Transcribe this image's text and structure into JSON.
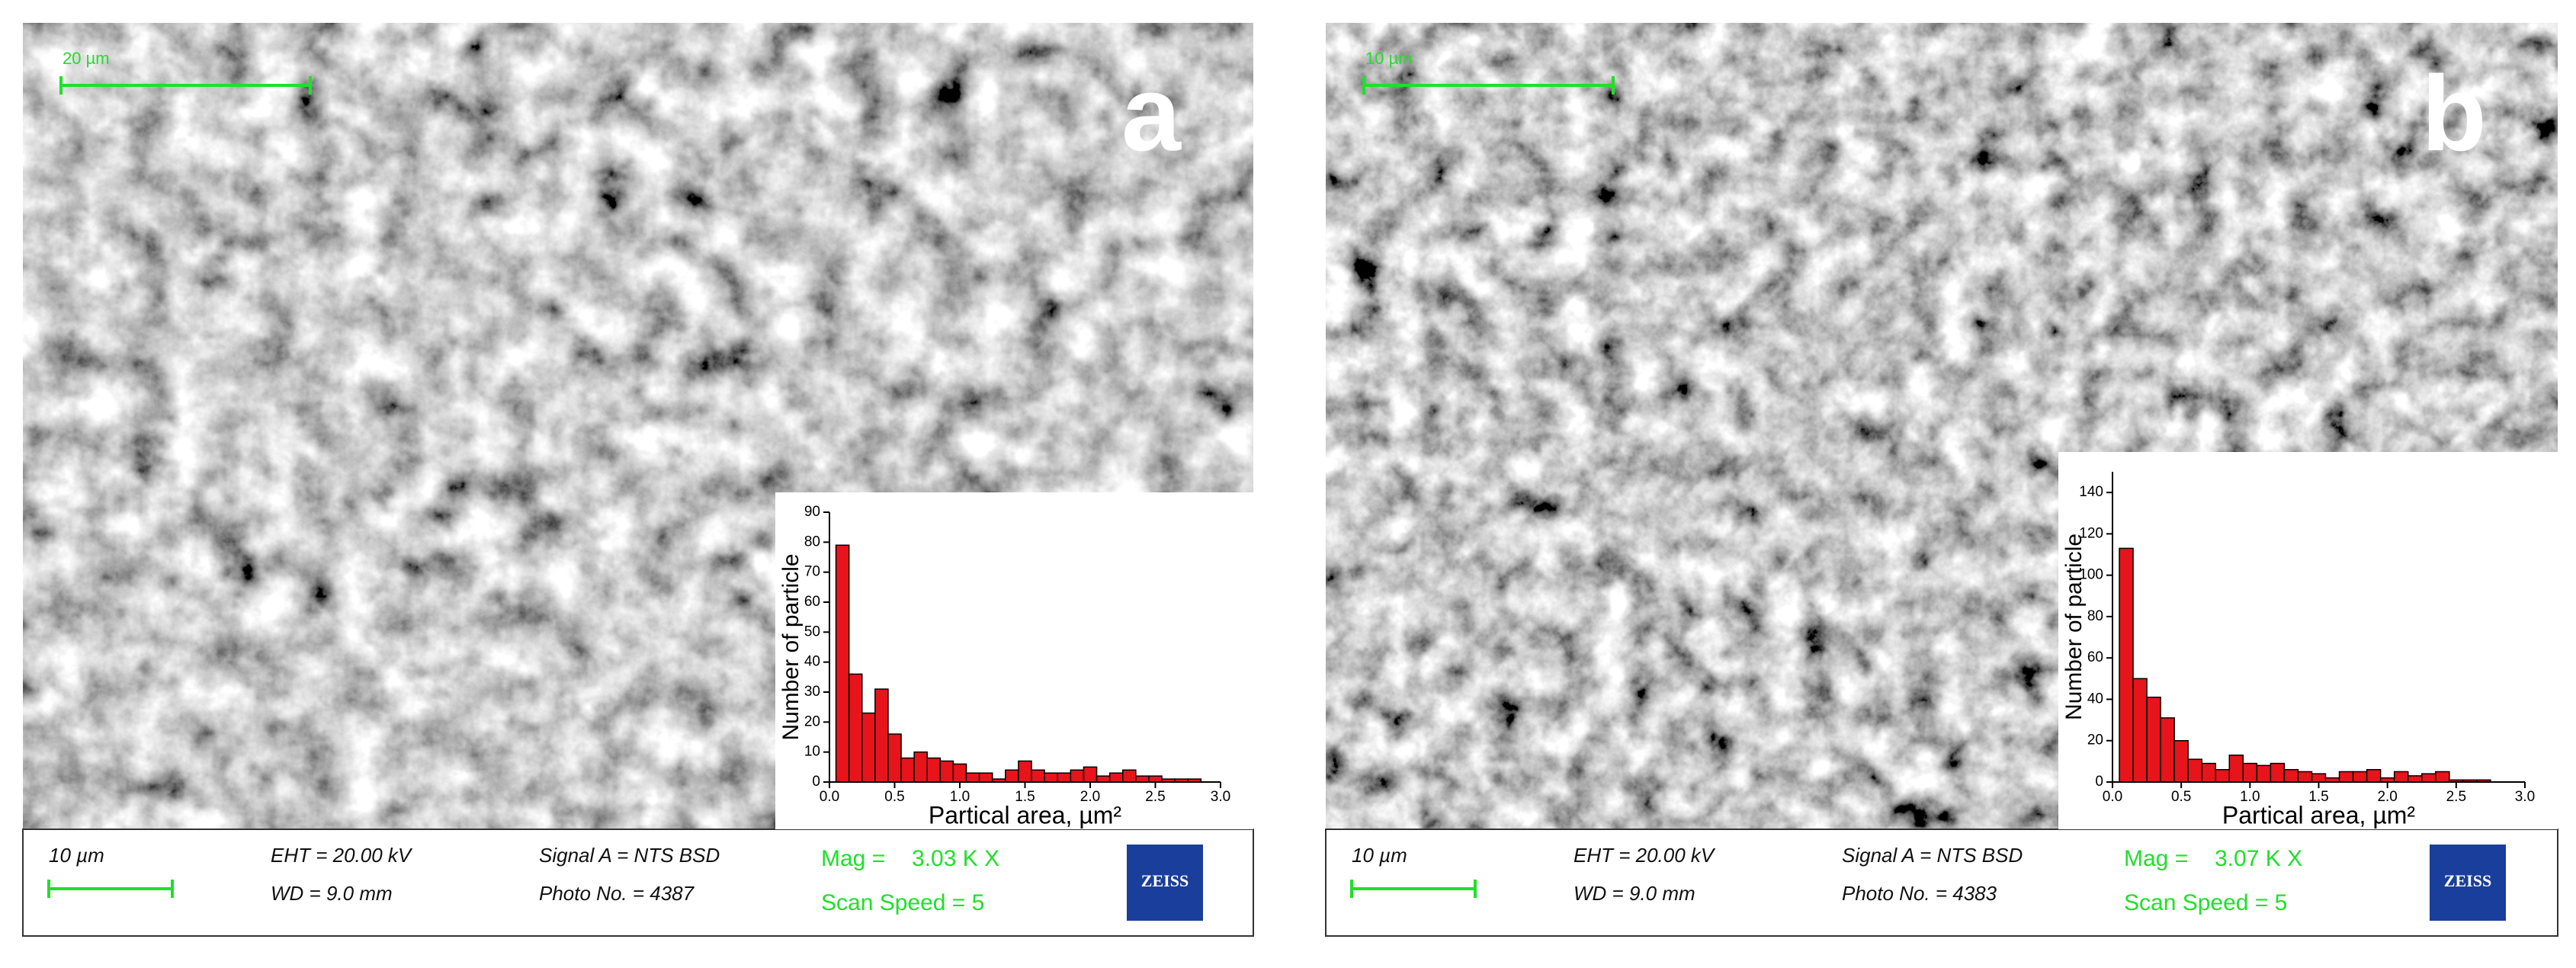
{
  "panels": [
    {
      "letter": "a",
      "scale_top": "20 µm",
      "info": {
        "scale": "10 µm",
        "eht": "EHT = 20.00 kV",
        "wd": "WD =  9.0 mm",
        "signal": "Signal A = NTS BSD",
        "photo": "Photo No. = 4387",
        "mag_label": "Mag =",
        "mag_value": "3.03 K X",
        "scan": "Scan Speed = 5",
        "logo": "ZEISS"
      }
    },
    {
      "letter": "b",
      "scale_top": "10 µm",
      "info": {
        "scale": "10 µm",
        "eht": "EHT = 20.00 kV",
        "wd": "WD =  9.0 mm",
        "signal": "Signal A = NTS BSD",
        "photo": "Photo No. = 4383",
        "mag_label": "Mag =",
        "mag_value": "3.07 K X",
        "scan": "Scan Speed = 5",
        "logo": "ZEISS"
      }
    }
  ],
  "chart_data": [
    {
      "type": "histogram",
      "x_label": "Partical area, µm²",
      "y_label": "Number of particle",
      "color": "#e8141b",
      "bins": [
        0.05,
        0.15,
        0.25,
        0.35,
        0.45,
        0.55,
        0.65,
        0.75,
        0.85,
        0.95,
        1.05,
        1.15,
        1.25,
        1.35,
        1.45,
        1.55,
        1.65,
        1.75,
        1.85,
        1.95,
        2.05,
        2.15,
        2.25,
        2.35,
        2.45,
        2.55,
        2.65,
        2.75,
        2.85
      ],
      "values": [
        79,
        36,
        23,
        31,
        16,
        8,
        10,
        8,
        7,
        6,
        3,
        3,
        1,
        4,
        7,
        4,
        3,
        3,
        4,
        5,
        2,
        3,
        4,
        2,
        2,
        1,
        1,
        1
      ],
      "xlim": [
        0,
        3
      ],
      "xticks": [
        {
          "value": 0,
          "label": "0.0"
        },
        0.5,
        {
          "value": 1,
          "label": "1.0"
        },
        1.5,
        {
          "value": 2,
          "label": "2.0"
        },
        2.5,
        {
          "value": 3,
          "label": "3.0"
        }
      ],
      "ylim": [
        0,
        90
      ],
      "yticks": [
        0,
        10,
        20,
        30,
        40,
        50,
        60,
        70,
        80,
        90
      ]
    },
    {
      "type": "histogram",
      "x_label": "Partical area, µm²",
      "y_label": "Number of particle",
      "color": "#e8141b",
      "bins": [
        0.05,
        0.15,
        0.25,
        0.35,
        0.45,
        0.55,
        0.65,
        0.75,
        0.85,
        0.95,
        1.05,
        1.15,
        1.25,
        1.35,
        1.45,
        1.55,
        1.65,
        1.75,
        1.85,
        1.95,
        2.05,
        2.15,
        2.25,
        2.35,
        2.45,
        2.55,
        2.65,
        2.75,
        2.85
      ],
      "values": [
        113,
        50,
        41,
        31,
        20,
        11,
        9,
        6,
        13,
        9,
        8,
        9,
        6,
        5,
        4,
        2,
        5,
        5,
        6,
        2,
        5,
        3,
        4,
        5,
        1,
        1,
        1,
        0
      ],
      "xlim": [
        0,
        3
      ],
      "xticks": [
        {
          "value": 0,
          "label": "0.0"
        },
        0.5,
        {
          "value": 1,
          "label": "1.0"
        },
        1.5,
        {
          "value": 2,
          "label": "2.0"
        },
        2.5,
        {
          "value": 3,
          "label": "3.0"
        }
      ],
      "ylim": [
        0,
        150
      ],
      "yticks": [
        0,
        20,
        40,
        60,
        80,
        100,
        120,
        140
      ]
    }
  ]
}
